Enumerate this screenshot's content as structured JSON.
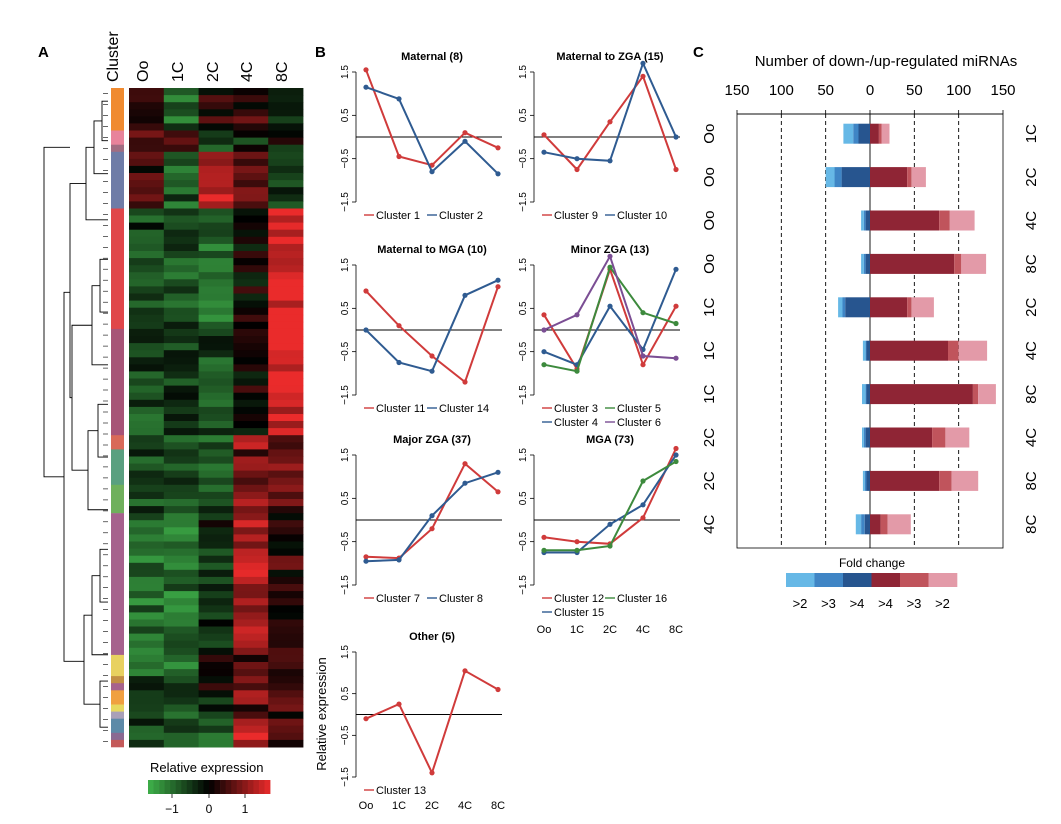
{
  "panel_letters": {
    "a": "A",
    "b": "B",
    "c": "C"
  },
  "chart_data": [
    {
      "panel": "A",
      "type": "heatmap",
      "columns": [
        "Cluster",
        "Oo",
        "1C",
        "2C",
        "4C",
        "8C"
      ],
      "legend_title": "Relative expression",
      "legend_ticks": [
        "−1",
        "0",
        "1"
      ],
      "legend_range": [
        -1.5,
        1.5
      ],
      "colors": {
        "low": "#3fb24a",
        "mid": "#000000",
        "high": "#ea2b2b"
      },
      "cluster_bar": [
        {
          "c": "#f08a30",
          "n": 6
        },
        {
          "c": "#e8839b",
          "n": 2
        },
        {
          "c": "#a26d82",
          "n": 1
        },
        {
          "c": "#6f7ca7",
          "n": 8
        },
        {
          "c": "#e0474a",
          "n": 17
        },
        {
          "c": "#a75477",
          "n": 15
        },
        {
          "c": "#d96a58",
          "n": 2
        },
        {
          "c": "#5aa080",
          "n": 5
        },
        {
          "c": "#6fb05c",
          "n": 4
        },
        {
          "c": "#a6628d",
          "n": 20
        },
        {
          "c": "#e8d160",
          "n": 3
        },
        {
          "c": "#c28f45",
          "n": 1
        },
        {
          "c": "#a6628d",
          "n": 1
        },
        {
          "c": "#f0a040",
          "n": 2
        },
        {
          "c": "#e7d85f",
          "n": 1
        },
        {
          "c": "#a9a0b8",
          "n": 1
        },
        {
          "c": "#5d8aa8",
          "n": 2
        },
        {
          "c": "#8a6a92",
          "n": 1
        },
        {
          "c": "#c45a5a",
          "n": 1
        }
      ],
      "blocks": [
        {
          "n": 6,
          "v": [
            0.4,
            -0.8,
            0.2,
            0.3,
            -0.2
          ]
        },
        {
          "n": 2,
          "v": [
            0.6,
            0.6,
            -0.2,
            -0.4,
            0.0
          ]
        },
        {
          "n": 1,
          "v": [
            0.5,
            0.5,
            -0.5,
            -0.3,
            -0.3
          ]
        },
        {
          "n": 8,
          "v": [
            0.3,
            -0.7,
            1.2,
            0.6,
            -0.5
          ]
        },
        {
          "n": 17,
          "v": [
            -0.5,
            -0.6,
            -0.9,
            0.05,
            1.5
          ]
        },
        {
          "n": 15,
          "v": [
            -0.6,
            -0.4,
            -0.6,
            0.1,
            1.4
          ]
        },
        {
          "n": 2,
          "v": [
            -0.3,
            -0.8,
            -0.8,
            0.9,
            0.5
          ]
        },
        {
          "n": 5,
          "v": [
            -0.6,
            -0.7,
            -0.7,
            0.6,
            0.9
          ]
        },
        {
          "n": 4,
          "v": [
            -0.6,
            -0.6,
            -0.6,
            0.8,
            0.6
          ]
        },
        {
          "n": 20,
          "v": [
            -0.9,
            -0.9,
            -0.3,
            1.1,
            0.3
          ]
        },
        {
          "n": 3,
          "v": [
            -0.7,
            -0.8,
            0.1,
            0.5,
            0.6
          ]
        },
        {
          "n": 1,
          "v": [
            -0.5,
            -0.6,
            -0.3,
            0.6,
            0.6
          ]
        },
        {
          "n": 1,
          "v": [
            -0.6,
            -0.6,
            0.0,
            0.7,
            0.5
          ]
        },
        {
          "n": 2,
          "v": [
            -0.4,
            -0.7,
            -0.3,
            0.8,
            0.6
          ]
        },
        {
          "n": 1,
          "v": [
            -0.6,
            -0.6,
            -0.2,
            0.5,
            0.8
          ]
        },
        {
          "n": 1,
          "v": [
            -0.5,
            -0.6,
            -0.6,
            0.7,
            0.4
          ]
        },
        {
          "n": 2,
          "v": [
            -0.6,
            -0.6,
            -0.6,
            1.3,
            0.3
          ]
        },
        {
          "n": 1,
          "v": [
            -0.5,
            -0.5,
            -0.6,
            1.3,
            0.2
          ]
        },
        {
          "n": 1,
          "v": [
            -0.5,
            -0.4,
            -0.6,
            1.2,
            0.3
          ]
        }
      ]
    },
    {
      "panel": "B",
      "type": "line",
      "x_labels": [
        "Oo",
        "1C",
        "2C",
        "4C",
        "8C"
      ],
      "y_ticks": [
        "1.5",
        "0.5",
        "−0.5",
        "−1.5"
      ],
      "ylim": [
        -1.5,
        1.5
      ],
      "ylabel": "Relative expression",
      "subplots": [
        {
          "title": "Maternal (8)",
          "series": [
            {
              "name": "Cluster 1",
              "color": "#d03b3b",
              "values": [
                1.55,
                -0.45,
                -0.65,
                0.1,
                -0.25
              ]
            },
            {
              "name": "Cluster 2",
              "color": "#2f5b91",
              "values": [
                1.15,
                0.88,
                -0.8,
                -0.1,
                -0.85
              ]
            }
          ]
        },
        {
          "title": "Maternal to ZGA (15)",
          "series": [
            {
              "name": "Cluster 9",
              "color": "#d03b3b",
              "values": [
                0.05,
                -0.75,
                0.35,
                1.4,
                -0.75
              ]
            },
            {
              "name": "Cluster 10",
              "color": "#2f5b91",
              "values": [
                -0.35,
                -0.5,
                -0.55,
                1.7,
                0.0
              ]
            }
          ]
        },
        {
          "title": "Maternal to MGA (10)",
          "series": [
            {
              "name": "Cluster 11",
              "color": "#d03b3b",
              "values": [
                0.9,
                0.1,
                -0.6,
                -1.2,
                1.0
              ]
            },
            {
              "name": "Cluster 14",
              "color": "#2f5b91",
              "values": [
                0.0,
                -0.75,
                -0.95,
                0.8,
                1.15
              ]
            }
          ]
        },
        {
          "title": "Minor ZGA (13)",
          "series": [
            {
              "name": "Cluster 3",
              "color": "#d03b3b",
              "values": [
                0.35,
                -0.9,
                1.4,
                -0.8,
                0.55
              ]
            },
            {
              "name": "Cluster 4",
              "color": "#2f5b91",
              "values": [
                -0.5,
                -0.8,
                0.55,
                -0.45,
                1.4
              ]
            },
            {
              "name": "Cluster 5",
              "color": "#3d8a3d",
              "values": [
                -0.8,
                -0.95,
                1.45,
                0.4,
                0.15
              ]
            },
            {
              "name": "Cluster 6",
              "color": "#7b4e94",
              "values": [
                0.0,
                0.35,
                1.7,
                -0.6,
                -0.65
              ]
            }
          ]
        },
        {
          "title": "Major ZGA (37)",
          "series": [
            {
              "name": "Cluster 7",
              "color": "#d03b3b",
              "values": [
                -0.85,
                -0.88,
                -0.2,
                1.3,
                0.65
              ]
            },
            {
              "name": "Cluster 8",
              "color": "#2f5b91",
              "values": [
                -0.95,
                -0.92,
                0.1,
                0.85,
                1.1
              ]
            }
          ]
        },
        {
          "title": "MGA (73)",
          "series": [
            {
              "name": "Cluster 12",
              "color": "#d03b3b",
              "values": [
                -0.4,
                -0.5,
                -0.55,
                0.05,
                1.65
              ]
            },
            {
              "name": "Cluster 15",
              "color": "#2f5b91",
              "values": [
                -0.75,
                -0.75,
                -0.1,
                0.35,
                1.5
              ]
            },
            {
              "name": "Cluster 16",
              "color": "#3d8a3d",
              "values": [
                -0.7,
                -0.7,
                -0.6,
                0.9,
                1.35
              ]
            }
          ]
        },
        {
          "title": "Other (5)",
          "series": [
            {
              "name": "Cluster 13",
              "color": "#d03b3b",
              "values": [
                -0.1,
                0.25,
                -1.4,
                1.05,
                0.6
              ]
            }
          ]
        }
      ]
    },
    {
      "panel": "C",
      "type": "bar",
      "title": "Number of down-/up-regulated miRNAs",
      "xlim": [
        -150,
        150
      ],
      "x_ticks": [
        "150",
        "100",
        "50",
        "0",
        "50",
        "100",
        "150"
      ],
      "x_tick_values": [
        -150,
        -100,
        -50,
        0,
        50,
        100,
        150
      ],
      "gridlines": [
        -100,
        -50,
        50,
        100
      ],
      "legend_title": "Fold change",
      "legend_labels": [
        ">2",
        ">3",
        ">4",
        ">4",
        ">3",
        ">2"
      ],
      "colors": {
        "down_gt4": "#27558f",
        "down_gt3": "#3f85c5",
        "down_gt2": "#66b8e6",
        "up_gt4": "#8f2535",
        "up_gt3": "#c0545c",
        "up_gt2": "#e39aa8"
      },
      "rows": [
        {
          "left": "Oo",
          "right": "1C",
          "down": [
            13,
            6,
            11
          ],
          "up": [
            10,
            3,
            9
          ]
        },
        {
          "left": "Oo",
          "right": "2C",
          "down": [
            32,
            8,
            10
          ],
          "up": [
            42,
            5,
            16
          ]
        },
        {
          "left": "Oo",
          "right": "4C",
          "down": [
            5,
            2,
            3
          ],
          "up": [
            78,
            12,
            28
          ]
        },
        {
          "left": "Oo",
          "right": "8C",
          "down": [
            5,
            2,
            3
          ],
          "up": [
            95,
            8,
            28
          ]
        },
        {
          "left": "1C",
          "right": "2C",
          "down": [
            28,
            3,
            5
          ],
          "up": [
            42,
            5,
            25
          ]
        },
        {
          "left": "1C",
          "right": "4C",
          "down": [
            4,
            1,
            3
          ],
          "up": [
            88,
            12,
            32
          ]
        },
        {
          "left": "1C",
          "right": "8C",
          "down": [
            4,
            1,
            4
          ],
          "up": [
            116,
            6,
            20
          ]
        },
        {
          "left": "2C",
          "right": "4C",
          "down": [
            5,
            2,
            2
          ],
          "up": [
            70,
            15,
            27
          ]
        },
        {
          "left": "2C",
          "right": "8C",
          "down": [
            4,
            2,
            2
          ],
          "up": [
            78,
            14,
            30
          ]
        },
        {
          "left": "4C",
          "right": "8C",
          "down": [
            6,
            4,
            6
          ],
          "up": [
            12,
            8,
            26
          ]
        }
      ]
    }
  ]
}
